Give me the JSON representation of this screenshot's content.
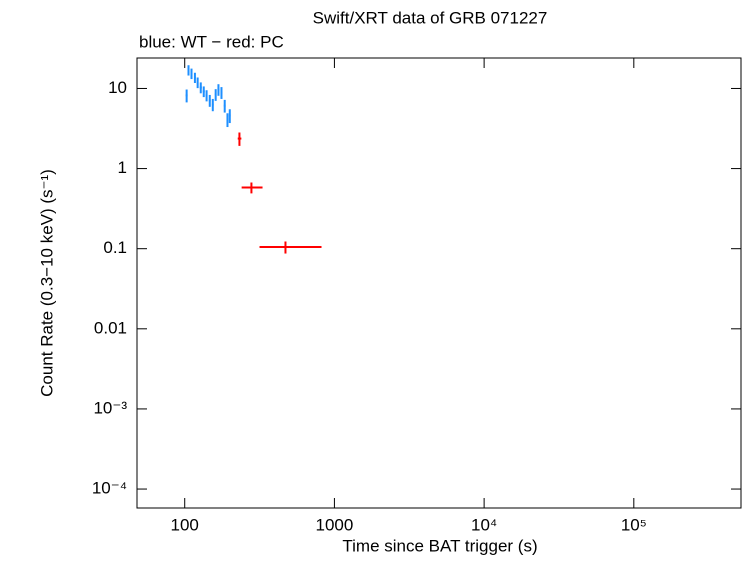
{
  "chart_data": {
    "type": "errorbar-scatter",
    "title": "Swift/XRT data of GRB 071227",
    "subtitle": "blue: WT − red: PC",
    "x_label": "Time since BAT trigger (s)",
    "y_label": "Count Rate (0.3−10 keV) (s⁻¹)",
    "xscale": "log",
    "yscale": "log",
    "xlim": [
      48,
      520000
    ],
    "ylim": [
      5.8e-05,
      24
    ],
    "xticks": [
      100,
      1000,
      {
        "value": 10000,
        "label": "10⁴"
      },
      {
        "value": 100000,
        "label": "10⁵"
      }
    ],
    "yticks": [
      10,
      1,
      0.1,
      0.01,
      {
        "value": 0.001,
        "label": "10⁻³"
      },
      {
        "value": 0.0001,
        "label": "10⁻⁴"
      }
    ],
    "series": [
      {
        "name": "WT",
        "color": "#1e8fff",
        "x": [
          103,
          106,
          111,
          117,
          122,
          128,
          134,
          140,
          147,
          154,
          161,
          168,
          176,
          185,
          193,
          200
        ],
        "values": [
          8.2,
          17,
          15.4,
          13.7,
          11.9,
          10.3,
          9.2,
          8.2,
          7.1,
          6.3,
          8.4,
          9.7,
          8.9,
          6.1,
          4.1,
          4.6
        ],
        "xerr": [
          [
            1.5,
            1.5
          ],
          [
            1.5,
            1.5
          ],
          [
            1.5,
            1.5
          ],
          [
            1.5,
            1.5
          ],
          [
            1.5,
            1.5
          ],
          [
            2,
            2
          ],
          [
            2,
            2
          ],
          [
            2,
            2
          ],
          [
            2,
            2
          ],
          [
            2,
            2
          ],
          [
            2,
            2
          ],
          [
            2.5,
            2.5
          ],
          [
            2.5,
            2.5
          ],
          [
            2.5,
            2.5
          ],
          [
            2.5,
            2.5
          ],
          [
            2.5,
            2.5
          ]
        ],
        "yerr": [
          [
            1.5,
            1.5
          ],
          [
            2.5,
            2.5
          ],
          [
            2.3,
            2.3
          ],
          [
            2,
            2
          ],
          [
            1.8,
            1.8
          ],
          [
            1.6,
            1.6
          ],
          [
            1.4,
            1.4
          ],
          [
            1.3,
            1.3
          ],
          [
            1.2,
            1.2
          ],
          [
            1.1,
            1.1
          ],
          [
            1.4,
            1.4
          ],
          [
            1.6,
            1.6
          ],
          [
            1.5,
            1.5
          ],
          [
            1.1,
            1.1
          ],
          [
            0.8,
            0.8
          ],
          [
            0.9,
            0.9
          ]
        ]
      },
      {
        "name": "PC",
        "color": "#ff0000",
        "x": [
          232,
          279,
          471
        ],
        "values": [
          2.37,
          0.58,
          0.105
        ],
        "xerr": [
          [
            6,
            7
          ],
          [
            39,
            52
          ],
          [
            155,
            349
          ]
        ],
        "yerr": [
          [
            0.45,
            0.45
          ],
          [
            0.09,
            0.09
          ],
          [
            0.018,
            0.018
          ]
        ]
      }
    ]
  }
}
